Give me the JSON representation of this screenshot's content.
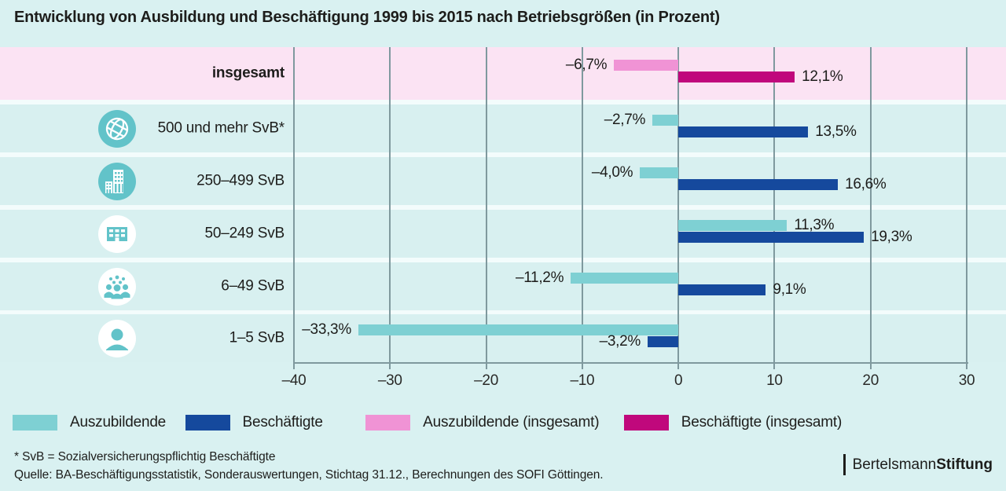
{
  "title": "Entwicklung von Ausbildung und Beschäftigung 1999 bis 2015 nach Betriebsgrößen (in Prozent)",
  "chart_data": {
    "type": "bar",
    "orientation": "horizontal",
    "title": "Entwicklung von Ausbildung und Beschäftigung 1999 bis 2015 nach Betriebsgrößen (in Prozent)",
    "categories": [
      "insgesamt",
      "500 und mehr SvB*",
      "250–499 SvB",
      "50–249 SvB",
      "6–49 SvB",
      "1–5 SvB"
    ],
    "series": [
      {
        "name": "Auszubildende",
        "values": [
          -6.7,
          -2.7,
          -4.0,
          11.3,
          -11.2,
          -33.3
        ]
      },
      {
        "name": "Beschäftigte",
        "values": [
          12.1,
          13.5,
          16.6,
          19.3,
          9.1,
          -3.2
        ]
      }
    ],
    "xlim": [
      -40,
      30
    ],
    "xticks": [
      -40,
      -30,
      -20,
      -10,
      0,
      10,
      20,
      30
    ],
    "xtick_labels": [
      "–40",
      "–30",
      "–20",
      "–10",
      "0",
      "10",
      "20",
      "30"
    ],
    "grid": true,
    "legend_position": "bottom",
    "note": "Top row 'insgesamt' uses pink/magenta colors; all other rows teal/blue"
  },
  "rows": [
    {
      "label": "insgesamt",
      "icon": null,
      "highlight": true,
      "bars": [
        {
          "series": "Auszubildende (insgesamt)",
          "value": -6.7,
          "display": "–6,7%",
          "color": "pink"
        },
        {
          "series": "Beschäftigte (insgesamt)",
          "value": 12.1,
          "display": "12,1%",
          "color": "magenta"
        }
      ]
    },
    {
      "label": "500 und mehr SvB*",
      "icon": "globe",
      "highlight": false,
      "bars": [
        {
          "series": "Auszubildende",
          "value": -2.7,
          "display": "–2,7%",
          "color": "teal"
        },
        {
          "series": "Beschäftigte",
          "value": 13.5,
          "display": "13,5%",
          "color": "blue"
        }
      ]
    },
    {
      "label": "250–499 SvB",
      "icon": "skyscrapers",
      "highlight": false,
      "bars": [
        {
          "series": "Auszubildende",
          "value": -4.0,
          "display": "–4,0%",
          "color": "teal"
        },
        {
          "series": "Beschäftigte",
          "value": 16.6,
          "display": "16,6%",
          "color": "blue"
        }
      ]
    },
    {
      "label": "50–249 SvB",
      "icon": "office-building",
      "highlight": false,
      "bars": [
        {
          "series": "Auszubildende",
          "value": 11.3,
          "display": "11,3%",
          "color": "teal"
        },
        {
          "series": "Beschäftigte",
          "value": 19.3,
          "display": "19,3%",
          "color": "blue"
        }
      ]
    },
    {
      "label": "6–49 SvB",
      "icon": "people-group",
      "highlight": false,
      "bars": [
        {
          "series": "Auszubildende",
          "value": -11.2,
          "display": "–11,2%",
          "color": "teal"
        },
        {
          "series": "Beschäftigte",
          "value": 9.1,
          "display": "9,1%",
          "color": "blue"
        }
      ]
    },
    {
      "label": "1–5 SvB",
      "icon": "person",
      "highlight": false,
      "bars": [
        {
          "series": "Auszubildende",
          "value": -33.3,
          "display": "–33,3%",
          "color": "teal"
        },
        {
          "series": "Beschäftigte",
          "value": -3.2,
          "display": "–3,2%",
          "color": "blue"
        }
      ]
    }
  ],
  "legend": [
    {
      "label": "Auszubildende",
      "color": "#7ed0d3"
    },
    {
      "label": "Beschäftigte",
      "color": "#15499d"
    },
    {
      "label": "Auszubildende (insgesamt)",
      "color": "#f093d5"
    },
    {
      "label": "Beschäftigte (insgesamt)",
      "color": "#c0087c"
    }
  ],
  "footnotes": [
    "* SvB = Sozialversicherungspflichtig Beschäftigte",
    "Quelle: BA-Beschäftigungsstatistik, Sonderauswertungen, Stichtag 31.12., Berechnungen des SOFI Göttingen."
  ],
  "logo": {
    "regular": "Bertelsmann",
    "bold": "Stiftung"
  },
  "colors": {
    "teal": "#7ed0d3",
    "blue": "#15499d",
    "pink": "#f093d5",
    "magenta": "#c0087c",
    "row_bg": "#d8f0f0",
    "highlight_row_bg": "#fbe3f3",
    "page_bg": "#d9f1f1",
    "separator": "#f3fcfc",
    "gridline": "#7f999e",
    "icon_teal": "#62c3c9",
    "text": "#1d1d1b"
  }
}
